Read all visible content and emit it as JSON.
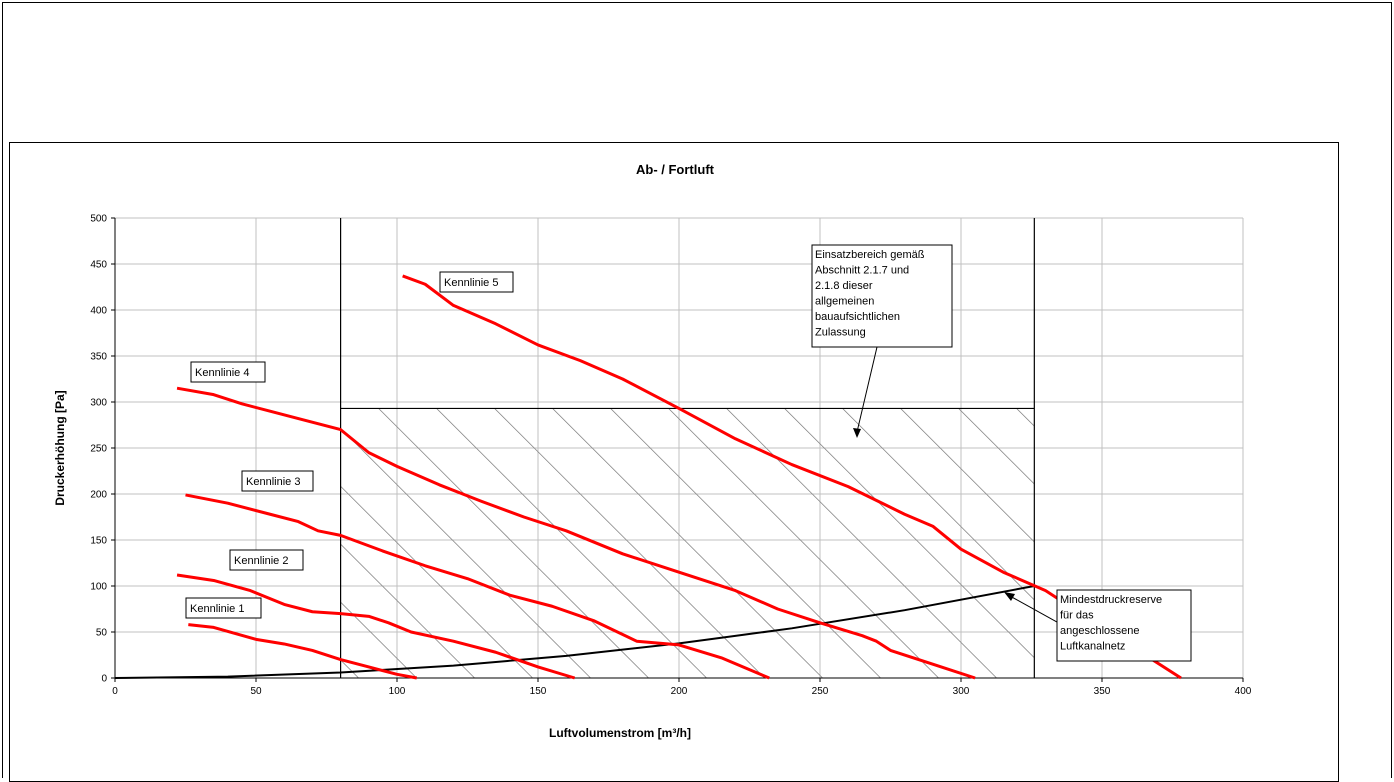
{
  "chart_data": {
    "type": "line",
    "title": "Ab- / Fortluft",
    "xlabel": "Luftvolumenstrom [m³/h]",
    "ylabel": "Druckerhöhung [Pa]",
    "xlim": [
      0,
      400
    ],
    "ylim": [
      0,
      500
    ],
    "xticks": [
      0,
      50,
      100,
      150,
      200,
      250,
      300,
      350,
      400
    ],
    "yticks": [
      0,
      50,
      100,
      150,
      200,
      250,
      300,
      350,
      400,
      450,
      500
    ],
    "grid": true,
    "colors": {
      "series": "#ff0000",
      "reserve": "#000000",
      "hatch": "#888888",
      "grid": "#c0c0c0"
    },
    "series": [
      {
        "name": "Kennlinie 1",
        "x": [
          26,
          35,
          50,
          60,
          70,
          80,
          90,
          100,
          107
        ],
        "y": [
          58,
          55,
          42,
          37,
          30,
          20,
          12,
          4,
          0
        ]
      },
      {
        "name": "Kennlinie 2",
        "x": [
          22,
          35,
          48,
          60,
          70,
          80,
          90,
          97,
          105,
          120,
          135,
          150,
          163
        ],
        "y": [
          112,
          106,
          95,
          80,
          72,
          70,
          67,
          60,
          50,
          40,
          28,
          12,
          0
        ]
      },
      {
        "name": "Kennlinie 3",
        "x": [
          25,
          40,
          55,
          65,
          72,
          80,
          95,
          110,
          125,
          140,
          155,
          170,
          185,
          200,
          215,
          232
        ],
        "y": [
          199,
          190,
          178,
          170,
          160,
          155,
          138,
          122,
          108,
          90,
          78,
          62,
          40,
          36,
          22,
          0
        ]
      },
      {
        "name": "Kennlinie 4",
        "x": [
          22,
          35,
          45,
          55,
          65,
          80,
          90,
          100,
          115,
          130,
          145,
          160,
          180,
          200,
          220,
          235,
          250,
          265,
          270,
          275,
          290,
          305
        ],
        "y": [
          315,
          308,
          298,
          290,
          282,
          270,
          245,
          230,
          210,
          192,
          175,
          160,
          135,
          115,
          95,
          75,
          60,
          46,
          40,
          30,
          15,
          0
        ]
      },
      {
        "name": "Kennlinie 5",
        "x": [
          102,
          110,
          120,
          135,
          150,
          165,
          180,
          200,
          220,
          240,
          260,
          280,
          290,
          300,
          315,
          330,
          350,
          378
        ],
        "y": [
          437,
          428,
          405,
          385,
          362,
          345,
          325,
          293,
          260,
          232,
          208,
          178,
          165,
          140,
          115,
          95,
          55,
          0
        ]
      }
    ],
    "reserve_curve": {
      "x": [
        0,
        40,
        80,
        120,
        160,
        200,
        240,
        280,
        326
      ],
      "y": [
        0,
        1.5,
        6,
        13.5,
        24,
        37.6,
        54,
        73.7,
        100
      ]
    },
    "operating_range": {
      "x_min": 80,
      "x_max": 326,
      "y_max": 293
    },
    "labels": {
      "k1": "Kennlinie 1",
      "k2": "Kennlinie 2",
      "k3": "Kennlinie 3",
      "k4": "Kennlinie 4",
      "k5": "Kennlinie 5"
    },
    "annotations": {
      "range_lines": [
        "Einsatzbereich  gemäß",
        "Abschnitt 2.1.7 und",
        "2.1.8 dieser",
        "allgemeinen",
        "bauaufsichtlichen",
        "Zulassung"
      ],
      "reserve_lines": [
        "Mindestdruckreserve",
        "für das",
        "angeschlossene",
        "Luftkanalnetz"
      ]
    }
  }
}
